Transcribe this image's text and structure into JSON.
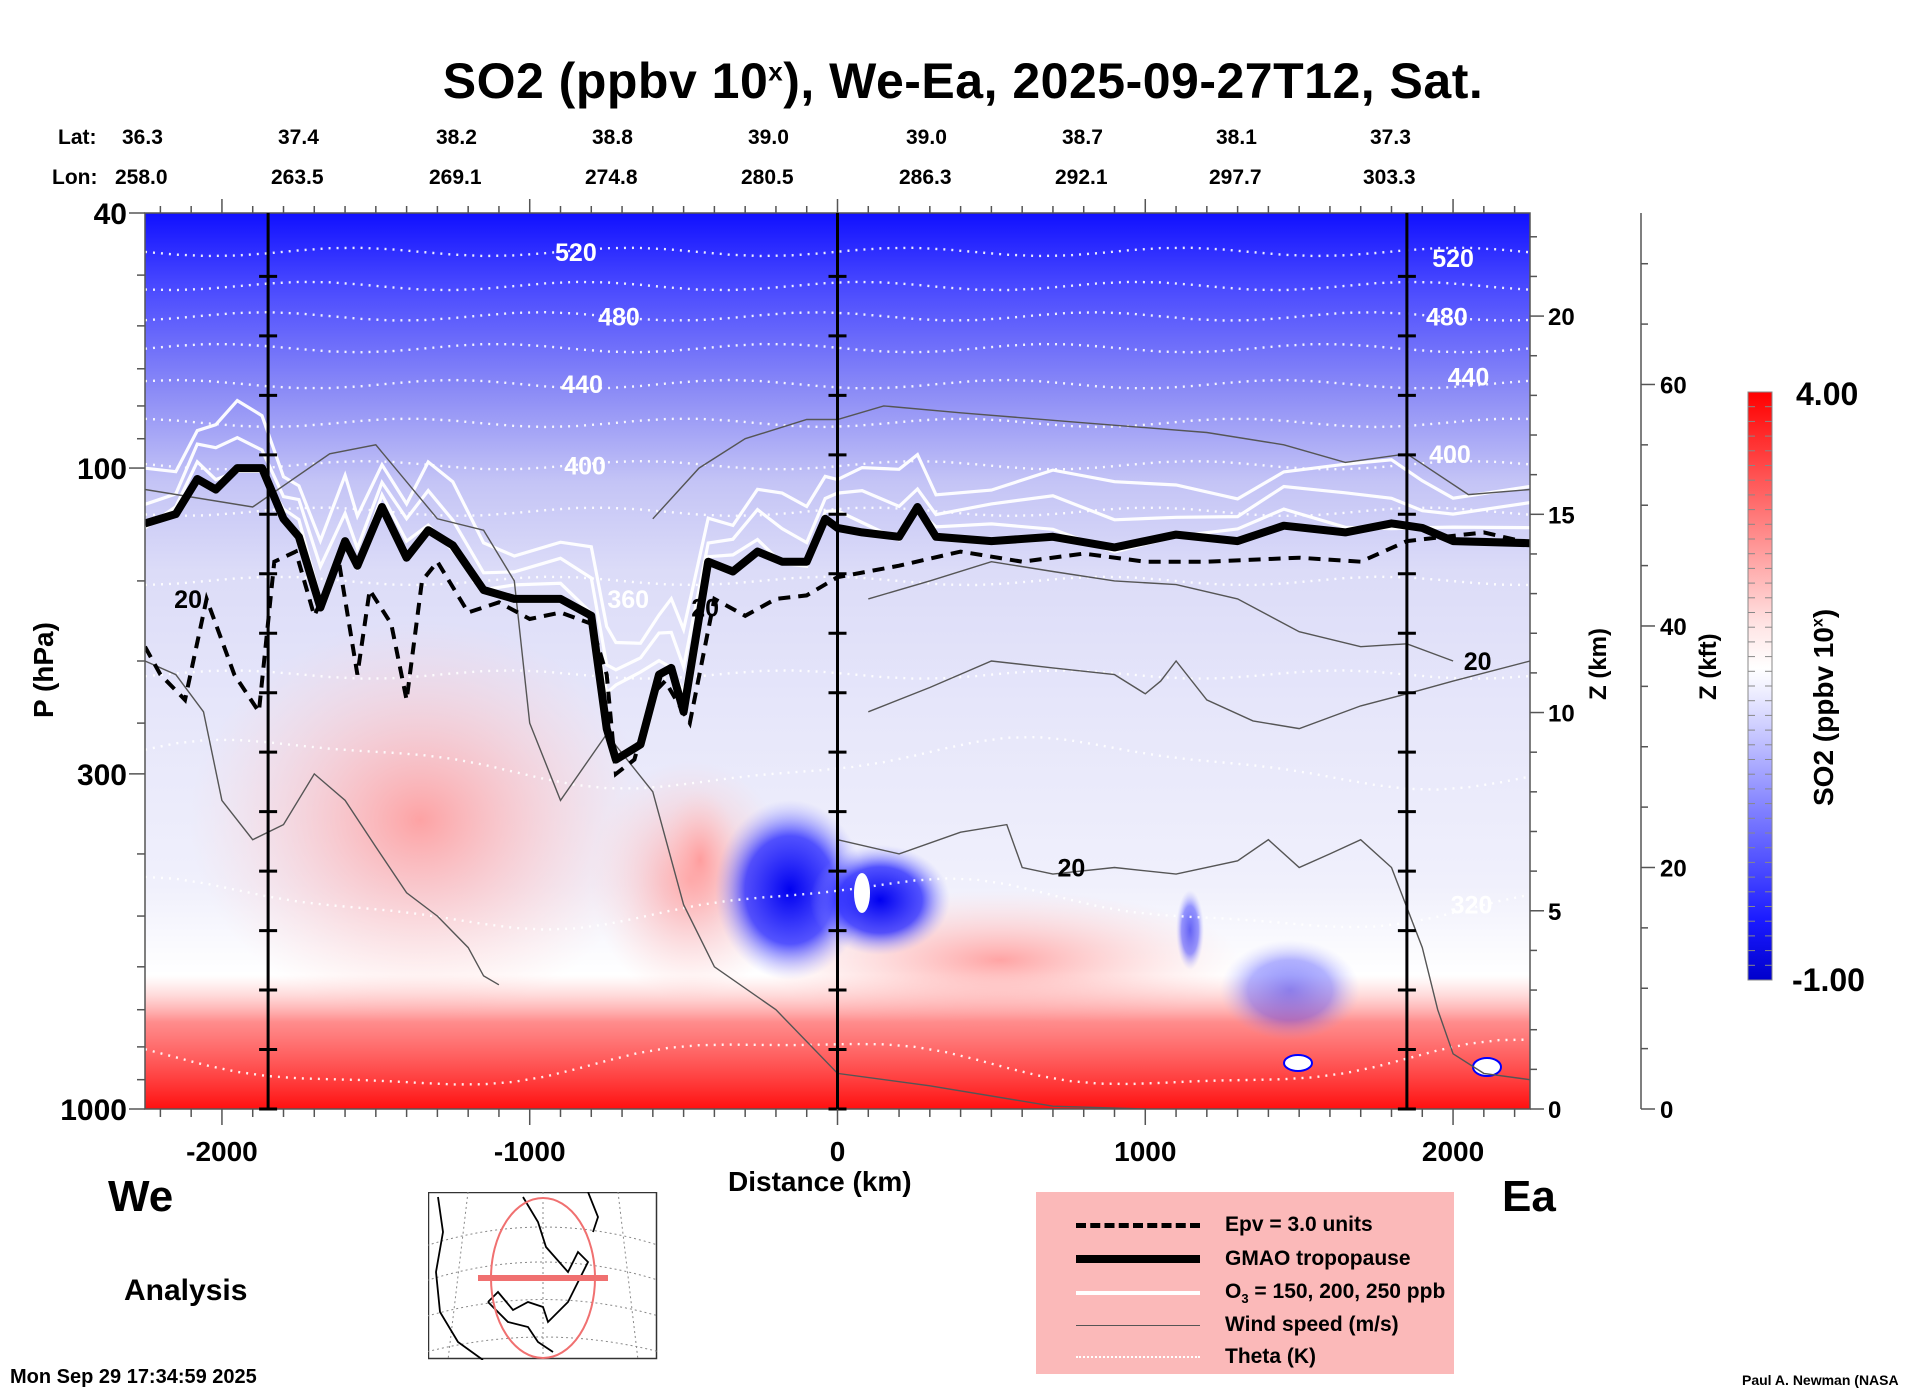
{
  "chart_data": {
    "type": "heatmap",
    "title": "SO2 (ppbv 10^x), We-Ea, 2025-09-27T12, Sat.",
    "title_parts": {
      "pre": "SO2 (ppbv 10",
      "sup": "x",
      "post": "), We-Ea, 2025-09-27T12, Sat."
    },
    "xlabel": "Distance (km)",
    "ylabel": "P (hPa)",
    "right_axis1_label": "Z (km)",
    "right_axis2_label": "Z (kft)",
    "colorbar_label": "SO2 (ppbv 10^x)",
    "colorbar_label_parts": {
      "pre": "SO2 (ppbv 10",
      "sup": "x",
      "post": ")"
    },
    "x_range": [
      -2250,
      2250
    ],
    "x_ticks": [
      -2000,
      -1000,
      0,
      1000,
      2000
    ],
    "y_range_hpa": [
      1000,
      40
    ],
    "y_scale": "log",
    "y_ticks": [
      40,
      100,
      300,
      1000
    ],
    "z_km_ticks": [
      0,
      5,
      10,
      15,
      20
    ],
    "z_kft_ticks": [
      0,
      20,
      40,
      60
    ],
    "colorbar": {
      "min": -1.0,
      "max": 4.0,
      "min_label": "-1.00",
      "max_label": "4.00",
      "colors": [
        "#0000d8",
        "#ffffff",
        "#ff0000"
      ]
    },
    "lat_label": "Lat:",
    "lon_label": "Lon:",
    "lat": [
      "36.3",
      "37.4",
      "38.2",
      "38.8",
      "39.0",
      "39.0",
      "38.7",
      "38.1",
      "37.3"
    ],
    "lon": [
      "258.0",
      "263.5",
      "269.1",
      "274.8",
      "280.5",
      "286.3",
      "292.1",
      "297.7",
      "303.3"
    ],
    "marker_lines_km": [
      -1850,
      0,
      1850
    ],
    "theta_contours_K": [
      {
        "level": 520,
        "p_hpa": 46
      },
      {
        "level": 500,
        "p_hpa": 52
      },
      {
        "level": 480,
        "p_hpa": 58
      },
      {
        "level": 460,
        "p_hpa": 65
      },
      {
        "level": 440,
        "p_hpa": 74
      },
      {
        "level": 420,
        "p_hpa": 85
      },
      {
        "level": 400,
        "p_hpa": 99
      },
      {
        "level": 380,
        "p_hpa": 117
      },
      {
        "level": 360,
        "p_hpa": 150
      },
      {
        "level": 340,
        "p_hpa": 210
      },
      {
        "level": 330,
        "p_hpa": 290
      },
      {
        "level": 320,
        "p_hpa": 480
      },
      {
        "level": 300,
        "p_hpa": 850
      }
    ],
    "theta_labels": [
      {
        "text": "520",
        "x_km": -850,
        "p_hpa": 46
      },
      {
        "text": "480",
        "x_km": -710,
        "p_hpa": 58
      },
      {
        "text": "440",
        "x_km": -830,
        "p_hpa": 74
      },
      {
        "text": "400",
        "x_km": -820,
        "p_hpa": 99
      },
      {
        "text": "360",
        "x_km": -680,
        "p_hpa": 160
      },
      {
        "text": "520",
        "x_km": 2000,
        "p_hpa": 47
      },
      {
        "text": "480",
        "x_km": 1980,
        "p_hpa": 58
      },
      {
        "text": "440",
        "x_km": 2050,
        "p_hpa": 72
      },
      {
        "text": "400",
        "x_km": 1990,
        "p_hpa": 95
      },
      {
        "text": "320",
        "x_km": 2060,
        "p_hpa": 480
      }
    ],
    "wind_labels": [
      {
        "text": "20",
        "x_km": -2110,
        "p_hpa": 160
      },
      {
        "text": "20",
        "x_km": -430,
        "p_hpa": 165
      },
      {
        "text": "20",
        "x_km": 760,
        "p_hpa": 420
      },
      {
        "text": "20",
        "x_km": 2080,
        "p_hpa": 200
      }
    ],
    "tropopause_gmao": [
      [
        -2250,
        122
      ],
      [
        -2150,
        118
      ],
      [
        -2080,
        104
      ],
      [
        -2020,
        108
      ],
      [
        -1950,
        100
      ],
      [
        -1870,
        100
      ],
      [
        -1800,
        120
      ],
      [
        -1750,
        128
      ],
      [
        -1680,
        165
      ],
      [
        -1600,
        130
      ],
      [
        -1560,
        142
      ],
      [
        -1480,
        115
      ],
      [
        -1400,
        138
      ],
      [
        -1330,
        125
      ],
      [
        -1250,
        132
      ],
      [
        -1150,
        155
      ],
      [
        -1050,
        160
      ],
      [
        -900,
        160
      ],
      [
        -800,
        170
      ],
      [
        -750,
        255
      ],
      [
        -720,
        285
      ],
      [
        -640,
        270
      ],
      [
        -580,
        210
      ],
      [
        -540,
        205
      ],
      [
        -500,
        240
      ],
      [
        -420,
        140
      ],
      [
        -340,
        145
      ],
      [
        -260,
        135
      ],
      [
        -180,
        140
      ],
      [
        -100,
        140
      ],
      [
        -40,
        120
      ],
      [
        0,
        124
      ],
      [
        80,
        126
      ],
      [
        200,
        128
      ],
      [
        260,
        115
      ],
      [
        320,
        128
      ],
      [
        500,
        130
      ],
      [
        700,
        128
      ],
      [
        900,
        133
      ],
      [
        1100,
        127
      ],
      [
        1300,
        130
      ],
      [
        1450,
        123
      ],
      [
        1650,
        126
      ],
      [
        1800,
        122
      ],
      [
        1900,
        124
      ],
      [
        2000,
        130
      ],
      [
        2250,
        131
      ]
    ],
    "epv_3pvu": [
      [
        -2250,
        190
      ],
      [
        -2200,
        210
      ],
      [
        -2120,
        230
      ],
      [
        -2050,
        160
      ],
      [
        -1960,
        210
      ],
      [
        -1880,
        240
      ],
      [
        -1830,
        140
      ],
      [
        -1760,
        135
      ],
      [
        -1700,
        170
      ],
      [
        -1620,
        140
      ],
      [
        -1560,
        210
      ],
      [
        -1520,
        155
      ],
      [
        -1450,
        175
      ],
      [
        -1400,
        230
      ],
      [
        -1350,
        150
      ],
      [
        -1300,
        140
      ],
      [
        -1200,
        168
      ],
      [
        -1100,
        162
      ],
      [
        -1000,
        172
      ],
      [
        -900,
        168
      ],
      [
        -800,
        175
      ],
      [
        -750,
        210
      ],
      [
        -720,
        300
      ],
      [
        -660,
        285
      ],
      [
        -600,
        225
      ],
      [
        -560,
        215
      ],
      [
        -480,
        250
      ],
      [
        -400,
        160
      ],
      [
        -300,
        170
      ],
      [
        -200,
        160
      ],
      [
        -100,
        158
      ],
      [
        0,
        148
      ],
      [
        200,
        142
      ],
      [
        400,
        135
      ],
      [
        600,
        140
      ],
      [
        800,
        136
      ],
      [
        1000,
        140
      ],
      [
        1200,
        140
      ],
      [
        1500,
        138
      ],
      [
        1700,
        140
      ],
      [
        1850,
        130
      ],
      [
        2100,
        126
      ],
      [
        2250,
        131
      ]
    ],
    "ozone_contours_ppb": [
      150,
      200,
      250
    ],
    "legend": [
      {
        "label": "Epv = 3.0 units",
        "style": "dashed-black"
      },
      {
        "label": "GMAO tropopause",
        "style": "thick-black"
      },
      {
        "label_pre": "O",
        "label_sub": "3",
        "label_post": " = 150, 200, 250 ppb",
        "label": "O3 = 150, 200, 250 ppb",
        "style": "white"
      },
      {
        "label": "Wind speed (m/s)",
        "style": "thin-gray"
      },
      {
        "label": "Theta (K)",
        "style": "dotted-white"
      }
    ],
    "legend_position": "bottom-right"
  },
  "labels": {
    "west": "We",
    "east": "Ea",
    "mode": "Analysis",
    "timestamp": "Mon Sep 29 17:34:59 2025",
    "credit": "Paul A. Newman (NASA"
  },
  "colors": {
    "so2_low": "#0000e6",
    "so2_mid": "#ffffff",
    "so2_high": "#ff0000",
    "legend_bg": "#fbb9b9",
    "map_track": "#f07070"
  }
}
